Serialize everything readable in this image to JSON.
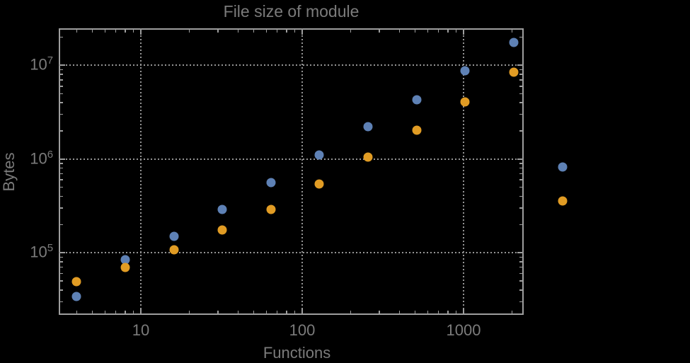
{
  "chart": {
    "title": "File size of module",
    "xlabel": "Functions",
    "ylabel": "Bytes"
  },
  "colors": {
    "background": "#000000",
    "frame": "#9e9e9e",
    "grid": "#949494",
    "text": "#7b7b7b",
    "series_blue": "#5E81B5",
    "series_orange": "#E19C24"
  },
  "chart_data": {
    "type": "scatter",
    "title": "File size of module",
    "xlabel": "Functions",
    "ylabel": "Bytes",
    "x_scale": "log",
    "y_scale": "log",
    "grid": "dotted, at decades",
    "legend": "none",
    "x_range": [
      3.1,
      2360
    ],
    "y_range": [
      21700,
      24900000
    ],
    "x": [
      4,
      8,
      16,
      32,
      64,
      128,
      256,
      512,
      1024,
      2048,
      4096
    ],
    "series": [
      {
        "name": "series-blue",
        "color": "#5E81B5",
        "values": [
          34000,
          84000,
          150000,
          290000,
          560000,
          1100000,
          2200000,
          4300000,
          8700000,
          17600000,
          830000
        ]
      },
      {
        "name": "series-orange",
        "color": "#E19C24",
        "values": [
          49000,
          70000,
          107000,
          175000,
          290000,
          540000,
          1050000,
          2050000,
          4100000,
          8400000,
          360000
        ]
      }
    ],
    "x_ticks": [
      {
        "value": 10,
        "label": "10"
      },
      {
        "value": 100,
        "label": "100"
      },
      {
        "value": 1000,
        "label": "1000"
      }
    ],
    "y_ticks": [
      {
        "value": 100000,
        "base": "10",
        "exp": "5"
      },
      {
        "value": 1000000,
        "base": "10",
        "exp": "6"
      },
      {
        "value": 10000000,
        "base": "10",
        "exp": "7"
      }
    ],
    "note": "points at x=4096 are drawn outside the right edge of the plot frame"
  }
}
